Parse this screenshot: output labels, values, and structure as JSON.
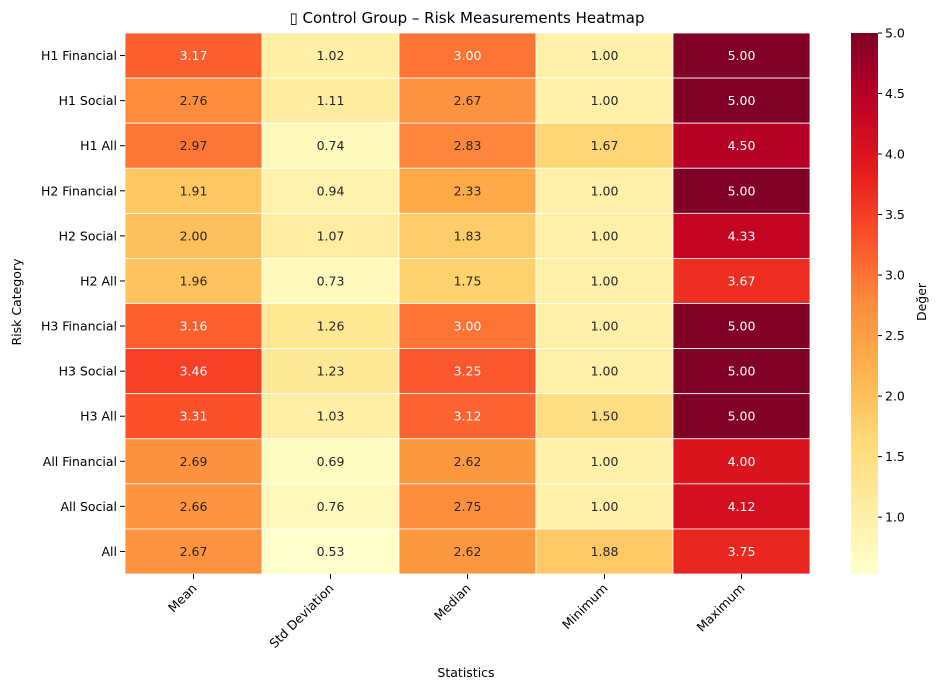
{
  "chart_data": {
    "type": "heatmap",
    "title": "▯ Control Group – Risk Measurements Heatmap",
    "xlabel": "Statistics",
    "ylabel": "Risk Category",
    "colorbar_label": "Değer",
    "colormap": "YlOrRd",
    "vmin": 0.53,
    "vmax": 5.0,
    "colorbar_ticks": [
      "1.0",
      "1.5",
      "2.0",
      "2.5",
      "3.0",
      "3.5",
      "4.0",
      "4.5",
      "5.0"
    ],
    "columns": [
      "Mean",
      "Std Deviation",
      "Median",
      "Minimum",
      "Maximum"
    ],
    "rows": [
      "H1 Financial",
      "H1 Social",
      "H1 All",
      "H2 Financial",
      "H2 Social",
      "H2 All",
      "H3 Financial",
      "H3 Social",
      "H3 All",
      "All Financial",
      "All Social",
      "All"
    ],
    "values": [
      [
        3.17,
        1.02,
        3.0,
        1.0,
        5.0
      ],
      [
        2.76,
        1.11,
        2.67,
        1.0,
        5.0
      ],
      [
        2.97,
        0.74,
        2.83,
        1.67,
        4.5
      ],
      [
        1.91,
        0.94,
        2.33,
        1.0,
        5.0
      ],
      [
        2.0,
        1.07,
        1.83,
        1.0,
        4.33
      ],
      [
        1.96,
        0.73,
        1.75,
        1.0,
        3.67
      ],
      [
        3.16,
        1.26,
        3.0,
        1.0,
        5.0
      ],
      [
        3.46,
        1.23,
        3.25,
        1.0,
        5.0
      ],
      [
        3.31,
        1.03,
        3.12,
        1.5,
        5.0
      ],
      [
        2.69,
        0.69,
        2.62,
        1.0,
        4.0
      ],
      [
        2.66,
        0.76,
        2.75,
        1.0,
        4.12
      ],
      [
        2.67,
        0.53,
        2.62,
        1.88,
        3.75
      ]
    ]
  }
}
